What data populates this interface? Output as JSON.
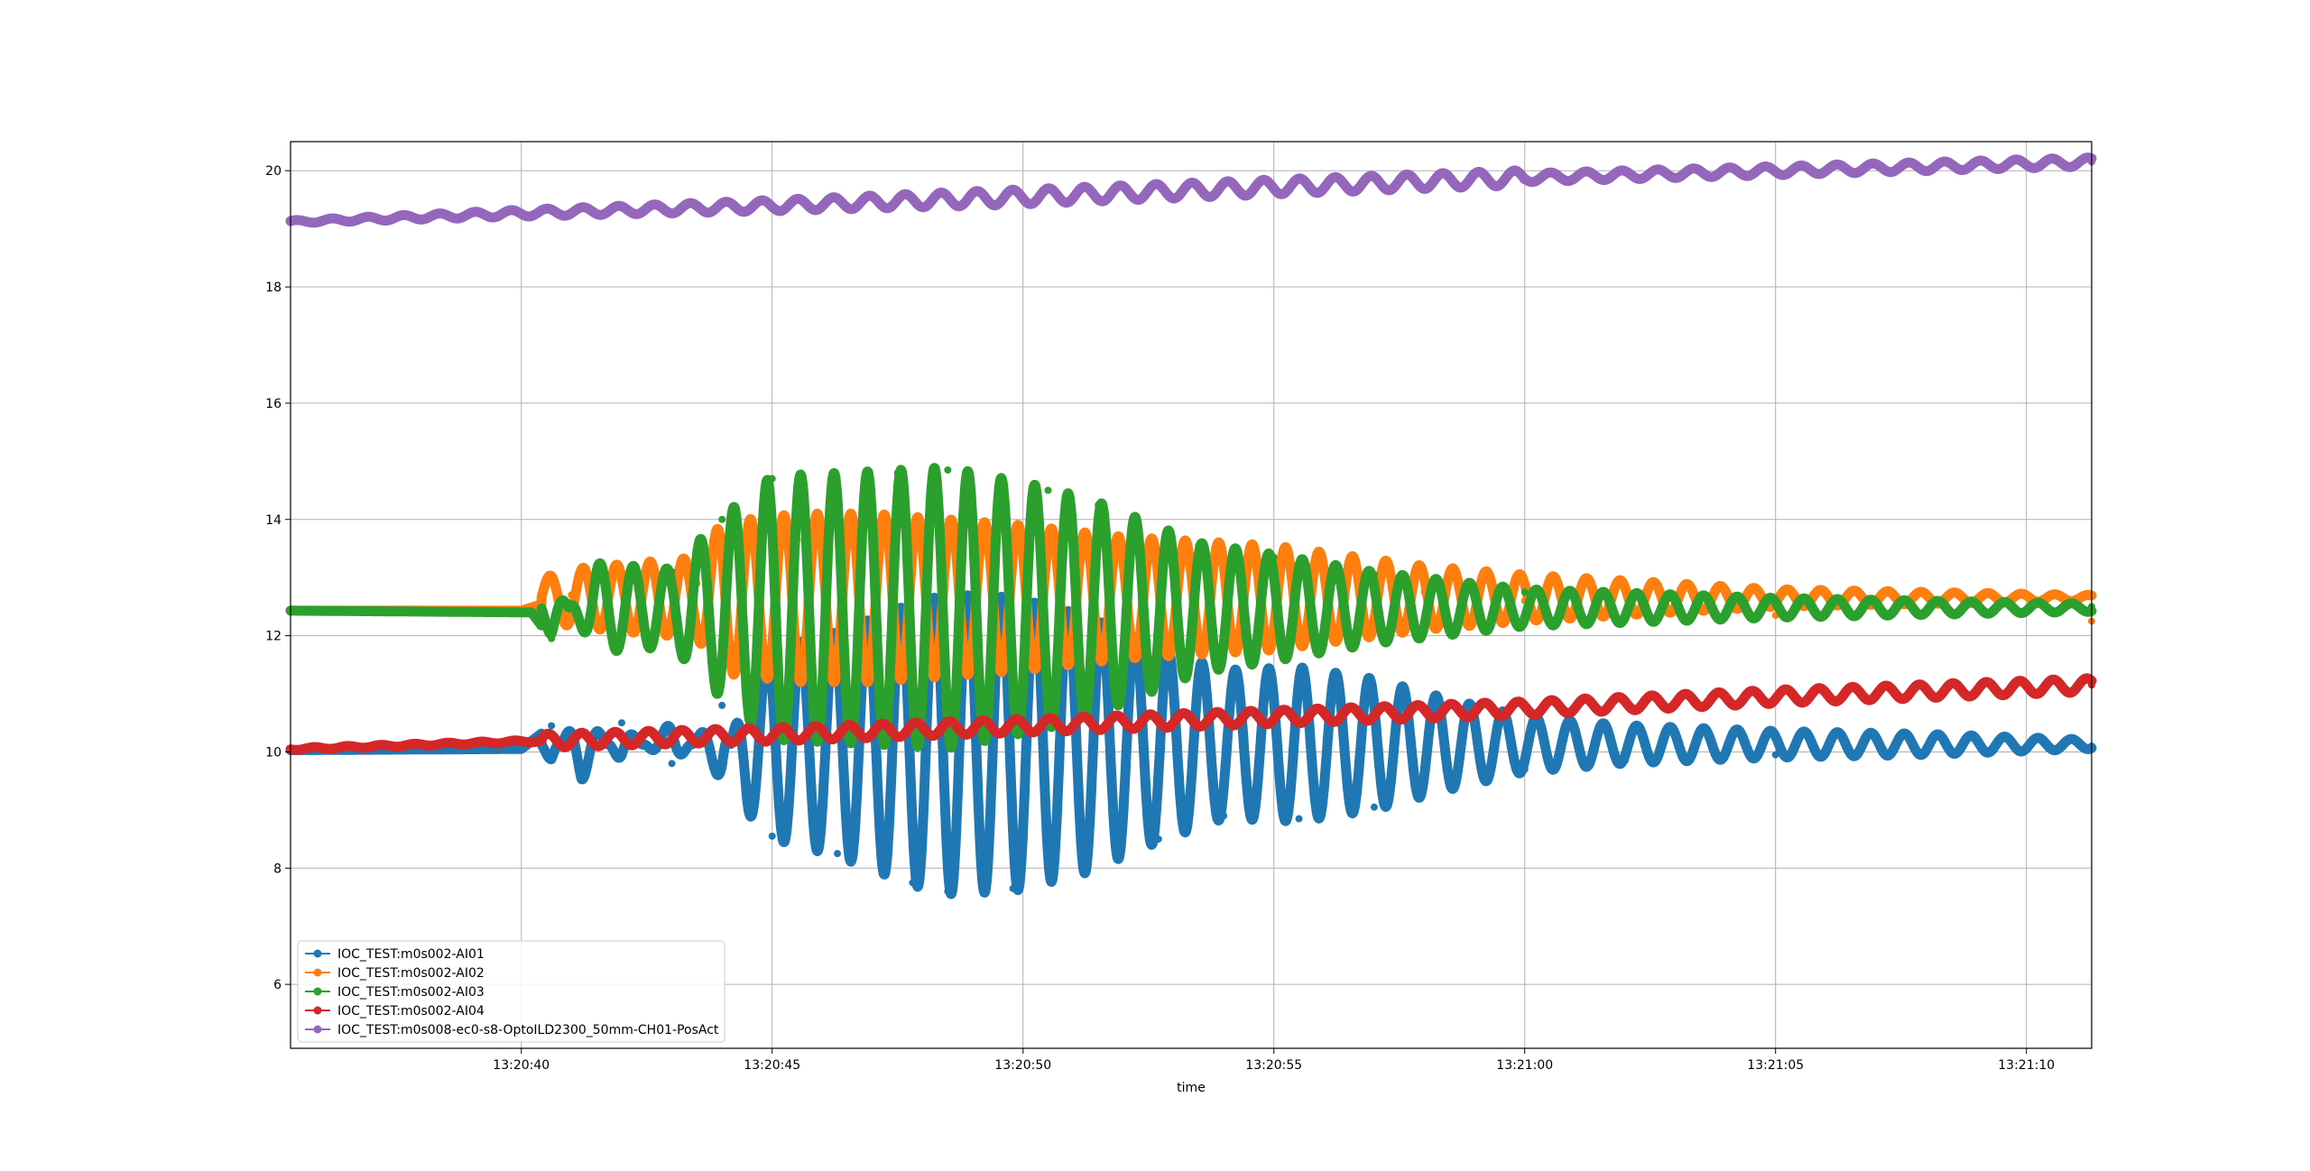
{
  "chart_data": {
    "type": "line",
    "title": "",
    "xlabel": "time",
    "ylabel": "",
    "xlim": [
      "13:20:35.4",
      "13:21:11.3"
    ],
    "ylim": [
      4.9,
      20.5
    ],
    "x_ticks": [
      "13:20:40",
      "13:20:45",
      "13:20:50",
      "13:20:55",
      "13:21:00",
      "13:21:05",
      "13:21:10"
    ],
    "y_ticks": [
      6,
      8,
      10,
      12,
      14,
      16,
      18,
      20
    ],
    "grid": true,
    "legend_position": "lower-left",
    "series": [
      {
        "name": "IOC_TEST:m0s002-AI01",
        "color": "#1f77b4",
        "marker": "circle",
        "description_of_signal": "baseline then damped sinusoidal oscillation",
        "points": [
          [
            "13:20:35.4",
            10.03
          ],
          [
            "13:20:40.0",
            10.05
          ],
          [
            "13:20:40.6",
            10.45
          ],
          [
            "13:20:41.2",
            9.55
          ],
          [
            "13:20:42.0",
            10.5
          ],
          [
            "13:20:43.0",
            9.8
          ],
          [
            "13:20:44.0",
            10.8
          ],
          [
            "13:20:44.5",
            9.0
          ],
          [
            "13:20:45.0",
            8.55
          ],
          [
            "13:20:46.3",
            8.25
          ],
          [
            "13:20:47.8",
            7.75
          ],
          [
            "13:20:48.5",
            7.6
          ],
          [
            "13:20:49.8",
            7.65
          ],
          [
            "13:20:51.2",
            7.95
          ],
          [
            "13:20:52.7",
            8.5
          ],
          [
            "13:20:54.0",
            8.9
          ],
          [
            "13:20:55.5",
            8.85
          ],
          [
            "13:20:57.0",
            9.05
          ],
          [
            "13:20:58.5",
            9.4
          ],
          [
            "13:21:00.0",
            9.7
          ],
          [
            "13:21:02.0",
            9.85
          ],
          [
            "13:21:05.0",
            9.95
          ],
          [
            "13:21:08.0",
            10.0
          ],
          [
            "13:21:11.3",
            10.1
          ]
        ]
      },
      {
        "name": "IOC_TEST:m0s002-AI02",
        "color": "#ff7f0e",
        "marker": "circle",
        "description_of_signal": "baseline then damped sinusoidal oscillation",
        "points": [
          [
            "13:20:35.4",
            12.43
          ],
          [
            "13:20:40.0",
            12.43
          ],
          [
            "13:20:41.0",
            12.7
          ],
          [
            "13:20:43.5",
            12.9
          ],
          [
            "13:20:44.0",
            13.5
          ],
          [
            "13:20:45.5",
            13.65
          ],
          [
            "13:20:47.0",
            13.65
          ],
          [
            "13:20:50.0",
            13.45
          ],
          [
            "13:20:52.0",
            13.25
          ],
          [
            "13:20:55.0",
            13.1
          ],
          [
            "13:20:58.0",
            12.75
          ],
          [
            "13:21:00.0",
            12.6
          ],
          [
            "13:21:05.0",
            12.35
          ],
          [
            "13:21:11.3",
            12.25
          ]
        ]
      },
      {
        "name": "IOC_TEST:m0s002-AI03",
        "color": "#2ca02c",
        "marker": "circle",
        "description_of_signal": "baseline then damped sinusoidal oscillation",
        "points": [
          [
            "13:20:35.4",
            12.43
          ],
          [
            "13:20:40.2",
            12.4
          ],
          [
            "13:20:40.6",
            11.95
          ],
          [
            "13:20:41.5",
            13.2
          ],
          [
            "13:20:43.0",
            13.1
          ],
          [
            "13:20:44.0",
            14.0
          ],
          [
            "13:20:45.0",
            14.7
          ],
          [
            "13:20:47.5",
            14.8
          ],
          [
            "13:20:48.5",
            14.85
          ],
          [
            "13:20:50.5",
            14.5
          ],
          [
            "13:20:51.5",
            14.25
          ],
          [
            "13:20:53.5",
            13.55
          ],
          [
            "13:20:55.0",
            13.35
          ],
          [
            "13:20:57.0",
            13.05
          ],
          [
            "13:21:00.0",
            12.75
          ],
          [
            "13:21:05.0",
            12.6
          ],
          [
            "13:21:11.3",
            12.5
          ]
        ]
      },
      {
        "name": "IOC_TEST:m0s002-AI04",
        "color": "#d62728",
        "marker": "circle",
        "description_of_signal": "slow linear rise with small oscillation",
        "points": [
          [
            "13:20:35.4",
            10.05
          ],
          [
            "13:20:40.0",
            10.18
          ],
          [
            "13:20:45.0",
            10.3
          ],
          [
            "13:20:50.0",
            10.45
          ],
          [
            "13:20:55.0",
            10.6
          ],
          [
            "13:21:00.0",
            10.75
          ],
          [
            "13:21:05.0",
            10.95
          ],
          [
            "13:21:11.3",
            11.15
          ]
        ]
      },
      {
        "name": "IOC_TEST:m0s008-ec0-s8-OptoILD2300_50mm-CH01-PosAct",
        "color": "#9467bd",
        "marker": "circle",
        "description_of_signal": "slow linear rise with oscillation",
        "points": [
          [
            "13:20:35.4",
            19.12
          ],
          [
            "13:20:40.0",
            19.27
          ],
          [
            "13:20:45.0",
            19.4
          ],
          [
            "13:20:50.0",
            19.55
          ],
          [
            "13:20:55.0",
            19.72
          ],
          [
            "13:21:00.0",
            19.88
          ],
          [
            "13:21:05.0",
            20.0
          ],
          [
            "13:21:11.3",
            20.15
          ]
        ]
      }
    ]
  }
}
